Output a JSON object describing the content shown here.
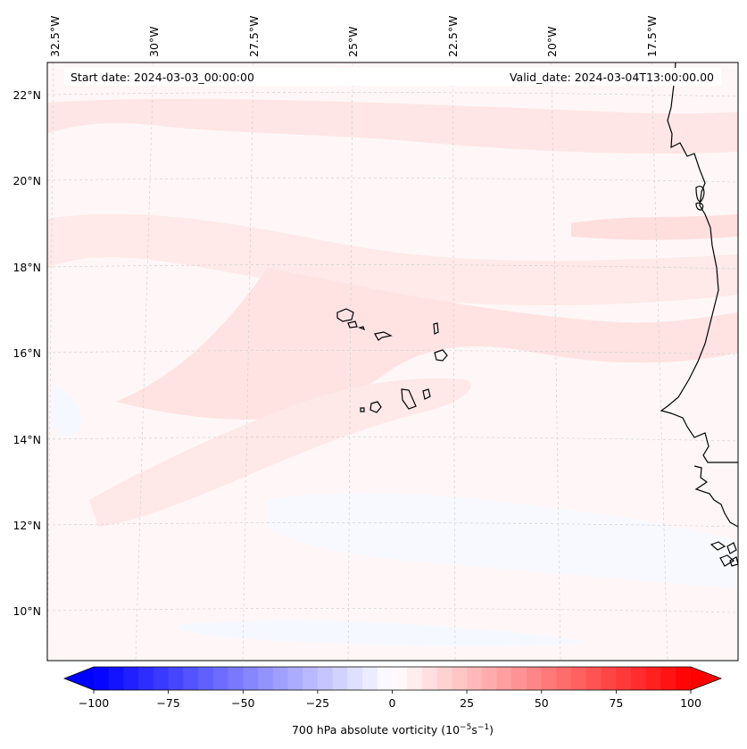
{
  "header": {
    "start_date": "Start date: 2024-03-03_00:00:00",
    "valid_date": "Valid_date: 2024-03-04T13:00:00.00"
  },
  "map": {
    "variable": "700 hPa absolute vorticity",
    "longitude_labels": [
      "32.5°W",
      "30°W",
      "27.5°W",
      "25°W",
      "22.5°W",
      "20°W",
      "17.5°W"
    ],
    "latitude_labels": [
      "22°N",
      "20°N",
      "18°N",
      "16°N",
      "14°N",
      "12°N",
      "10°N"
    ],
    "lon_range": [
      -32.5,
      -15.0
    ],
    "lat_range": [
      8.9,
      22.8
    ]
  },
  "colorbar": {
    "ticks": [
      "−100",
      "−75",
      "−50",
      "−25",
      "0",
      "25",
      "50",
      "75",
      "100"
    ],
    "label_main": "700 hPa absolute vorticity (10",
    "label_exp1": "−5",
    "label_mid": "s",
    "label_exp2": "−1",
    "label_end": ")",
    "min": -100,
    "max": 100,
    "low_color": "#0000ff",
    "mid_color": "#ffffff",
    "high_color": "#ff0000"
  }
}
